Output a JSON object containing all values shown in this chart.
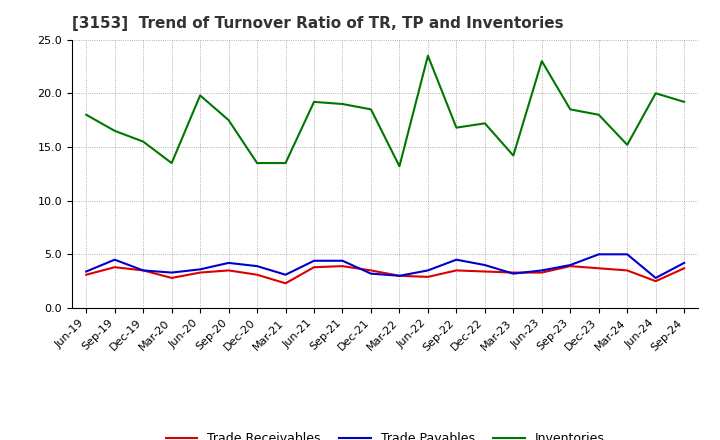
{
  "title": "[3153]  Trend of Turnover Ratio of TR, TP and Inventories",
  "labels": [
    "Jun-19",
    "Sep-19",
    "Dec-19",
    "Mar-20",
    "Jun-20",
    "Sep-20",
    "Dec-20",
    "Mar-21",
    "Jun-21",
    "Sep-21",
    "Dec-21",
    "Mar-22",
    "Jun-22",
    "Sep-22",
    "Dec-22",
    "Mar-23",
    "Jun-23",
    "Sep-23",
    "Dec-23",
    "Mar-24",
    "Jun-24",
    "Sep-24"
  ],
  "trade_receivables": [
    3.1,
    3.8,
    3.5,
    2.8,
    3.3,
    3.5,
    3.1,
    2.3,
    3.8,
    3.9,
    3.5,
    3.0,
    2.9,
    3.5,
    3.4,
    3.3,
    3.3,
    3.9,
    3.7,
    3.5,
    2.5,
    3.7
  ],
  "trade_payables": [
    3.4,
    4.5,
    3.5,
    3.3,
    3.6,
    4.2,
    3.9,
    3.1,
    4.4,
    4.4,
    3.2,
    3.0,
    3.5,
    4.5,
    4.0,
    3.2,
    3.5,
    4.0,
    5.0,
    5.0,
    2.8,
    4.2
  ],
  "inventories": [
    18.0,
    16.5,
    15.5,
    13.5,
    19.8,
    17.5,
    13.5,
    13.5,
    19.2,
    19.0,
    18.5,
    13.2,
    23.5,
    16.8,
    17.2,
    14.2,
    23.0,
    18.5,
    18.0,
    15.2,
    20.0,
    19.2
  ],
  "ylim": [
    0,
    25
  ],
  "yticks": [
    0.0,
    5.0,
    10.0,
    15.0,
    20.0,
    25.0
  ],
  "legend_labels": [
    "Trade Receivables",
    "Trade Payables",
    "Inventories"
  ],
  "line_colors_tr": "#dd0000",
  "line_colors_tp": "#0000cc",
  "line_colors_inv": "#007700",
  "background_color": "#ffffff",
  "grid_color": "#999999",
  "title_fontsize": 11,
  "tick_fontsize": 8,
  "legend_fontsize": 9
}
